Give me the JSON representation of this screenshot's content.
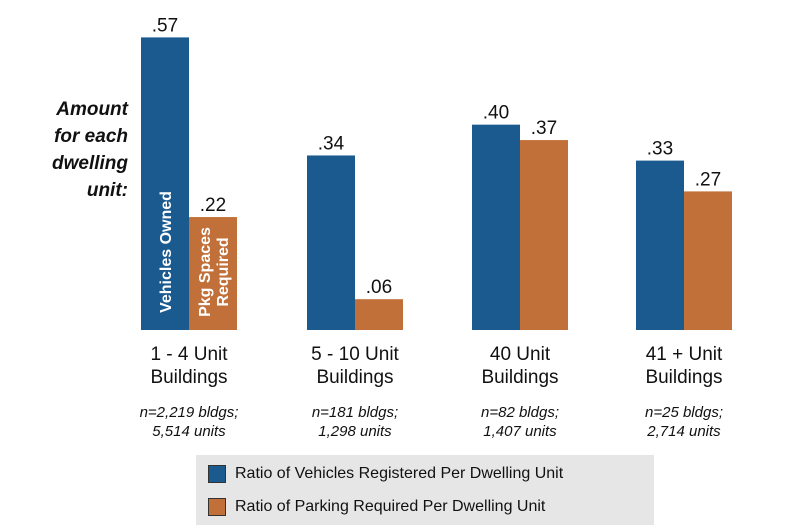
{
  "chart_data": {
    "type": "bar",
    "ylabel": "Amount\nfor each\ndwelling\nunit:",
    "ylim": [
      0,
      0.6
    ],
    "grid": false,
    "legend_placement": "bottom",
    "colors": {
      "vehicles": "#1a5a8f",
      "parking": "#c07038"
    },
    "categories": [
      {
        "label_lines": [
          "1 - 4 Unit",
          "Buildings"
        ],
        "note_lines": [
          "n=2,219 bldgs;",
          "5,514 units"
        ]
      },
      {
        "label_lines": [
          "5 - 10 Unit",
          "Buildings"
        ],
        "note_lines": [
          "n=181 bldgs;",
          "1,298 units"
        ]
      },
      {
        "label_lines": [
          "40 Unit",
          "Buildings"
        ],
        "note_lines": [
          "n=82 bldgs;",
          "1,407 units"
        ]
      },
      {
        "label_lines": [
          "41 + Unit",
          "Buildings"
        ],
        "note_lines": [
          "n=25 bldgs;",
          "2,714 units"
        ]
      }
    ],
    "series": [
      {
        "name": "Ratio of Vehicles Registered Per Dwelling Unit",
        "values": [
          0.57,
          0.34,
          0.4,
          0.33
        ],
        "labels": [
          ".57",
          ".34",
          ".40",
          ".33"
        ]
      },
      {
        "name": "Ratio of Parking Required Per Dwelling Unit",
        "values": [
          0.22,
          0.06,
          0.37,
          0.27
        ],
        "labels": [
          ".22",
          ".06",
          ".37",
          ".27"
        ]
      }
    ],
    "annotations": [
      {
        "text": "Vehicles Owned"
      },
      {
        "text": "Pkg Spaces\nRequired"
      }
    ]
  }
}
